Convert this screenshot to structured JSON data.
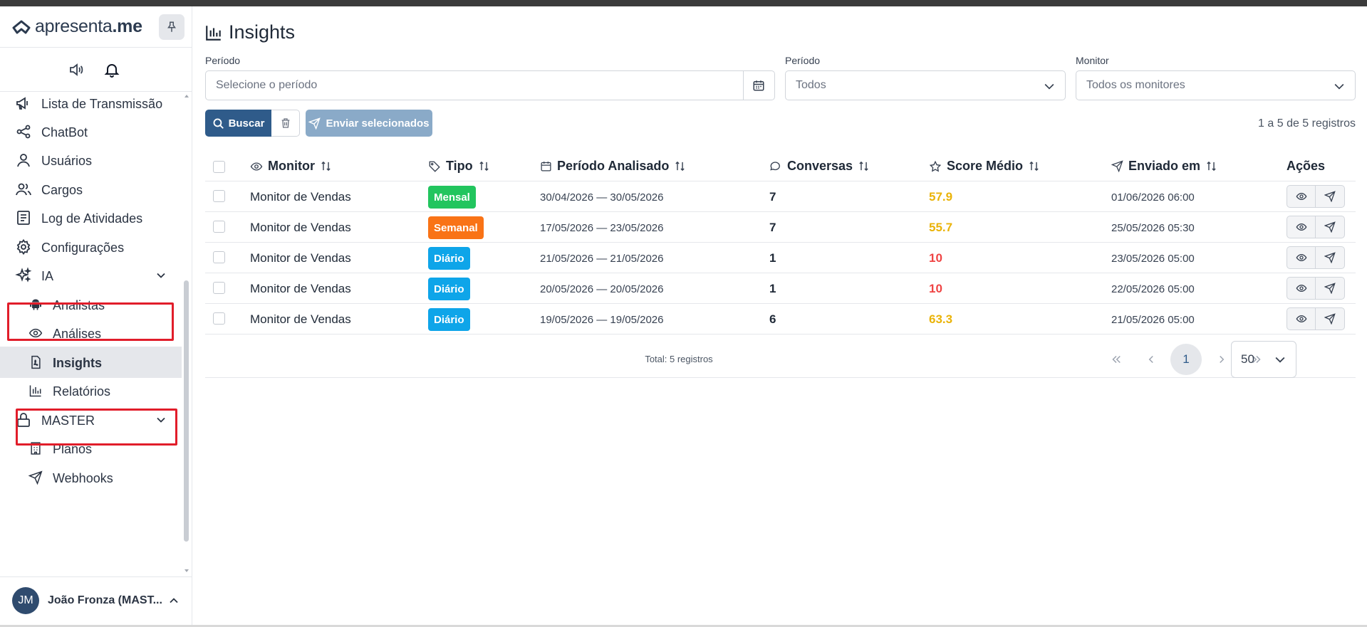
{
  "app": {
    "logo_main": "apresenta",
    "logo_suffix": ".me"
  },
  "sidebar": {
    "items": [
      {
        "label": "Lista de Transmissão",
        "icon": "megaphone-icon"
      },
      {
        "label": "ChatBot",
        "icon": "share-nodes-icon"
      },
      {
        "label": "Usuários",
        "icon": "user-icon"
      },
      {
        "label": "Cargos",
        "icon": "users-icon"
      },
      {
        "label": "Log de Atividades",
        "icon": "log-book-icon"
      },
      {
        "label": "Configurações",
        "icon": "gear-icon"
      },
      {
        "label": "IA",
        "icon": "sparkles-icon",
        "expanded": true
      },
      {
        "label": "Analistas",
        "icon": "android-icon"
      },
      {
        "label": "Análises",
        "icon": "eye-icon"
      },
      {
        "label": "Insights",
        "icon": "pdf-file-icon",
        "active": true
      },
      {
        "label": "Relatórios",
        "icon": "bar-chart-icon"
      },
      {
        "label": "MASTER",
        "icon": "lock-icon",
        "expanded": true
      },
      {
        "label": "Planos",
        "icon": "building-icon"
      },
      {
        "label": "Webhooks",
        "icon": "send-icon"
      }
    ],
    "user": {
      "initials": "JM",
      "name": "João Fronza (MAST..."
    }
  },
  "main": {
    "title": "Insights",
    "filters": {
      "period_label": "Período",
      "period_placeholder": "Selecione o período",
      "period_type_label": "Período",
      "period_type_value": "Todos",
      "monitor_label": "Monitor",
      "monitor_value": "Todos os monitores"
    },
    "buttons": {
      "search": "Buscar",
      "send_selected": "Enviar selecionados"
    },
    "records_text": "1 a 5 de 5 registros",
    "table": {
      "headers": [
        "Monitor",
        "Tipo",
        "Período Analisado",
        "Conversas",
        "Score Médio",
        "Enviado em",
        "Ações"
      ],
      "rows": [
        {
          "monitor": "Monitor de Vendas",
          "tipo": "Mensal",
          "tipo_color": "#22c55e",
          "periodo": "30/04/2026 — 30/05/2026",
          "conversas": "7",
          "score": "57.9",
          "score_color": "#eab308",
          "enviado": "01/06/2026 06:00"
        },
        {
          "monitor": "Monitor de Vendas",
          "tipo": "Semanal",
          "tipo_color": "#f97316",
          "periodo": "17/05/2026 — 23/05/2026",
          "conversas": "7",
          "score": "55.7",
          "score_color": "#eab308",
          "enviado": "25/05/2026 05:30"
        },
        {
          "monitor": "Monitor de Vendas",
          "tipo": "Diário",
          "tipo_color": "#0ea5e9",
          "periodo": "21/05/2026 — 21/05/2026",
          "conversas": "1",
          "score": "10",
          "score_color": "#ef4444",
          "enviado": "23/05/2026 05:00"
        },
        {
          "monitor": "Monitor de Vendas",
          "tipo": "Diário",
          "tipo_color": "#0ea5e9",
          "periodo": "20/05/2026 — 20/05/2026",
          "conversas": "1",
          "score": "10",
          "score_color": "#ef4444",
          "enviado": "22/05/2026 05:00"
        },
        {
          "monitor": "Monitor de Vendas",
          "tipo": "Diário",
          "tipo_color": "#0ea5e9",
          "periodo": "19/05/2026 — 19/05/2026",
          "conversas": "6",
          "score": "63.3",
          "score_color": "#eab308",
          "enviado": "21/05/2026 05:00"
        }
      ],
      "total_text": "Total: 5 registros",
      "current_page": "1",
      "page_size": "50"
    }
  }
}
